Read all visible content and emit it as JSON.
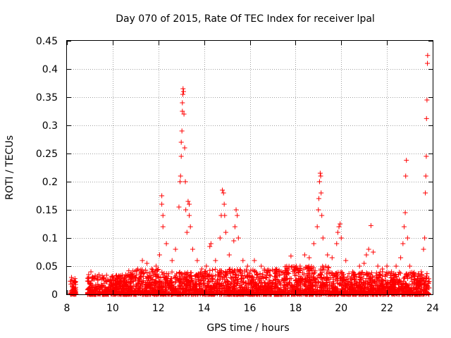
{
  "colors": {
    "series": "#ff0000",
    "axis": "#000000",
    "grid": "#a0a0a0",
    "background": "#ffffff"
  },
  "chart_data": {
    "type": "scatter",
    "title": "Day 070 of 2015, Rate Of TEC Index for receiver lpal",
    "xlabel": "GPS time / hours",
    "ylabel": "ROTI / TECUs",
    "xlim": [
      8,
      24
    ],
    "ylim": [
      0,
      0.45
    ],
    "xticks": [
      8,
      10,
      12,
      14,
      16,
      18,
      20,
      22,
      24
    ],
    "xtick_labels": [
      "8",
      "10",
      "12",
      "14",
      "16",
      "18",
      "20",
      "22",
      "24"
    ],
    "yticks": [
      0,
      0.05,
      0.1,
      0.15,
      0.2,
      0.25,
      0.3,
      0.35,
      0.4,
      0.45
    ],
    "ytick_labels": [
      "0",
      "0.05",
      "0.1",
      "0.15",
      "0.2",
      "0.25",
      "0.3",
      "0.35",
      "0.4",
      "0.45"
    ],
    "grid": true,
    "marker": "+",
    "series": [
      {
        "name": "ROTI",
        "points": [
          [
            8.2,
            0.03
          ],
          [
            8.25,
            0.025
          ],
          [
            8.3,
            0.02
          ],
          [
            8.3,
            0.01
          ],
          [
            8.35,
            0.028
          ],
          [
            8.95,
            0.035
          ],
          [
            9.05,
            0.04
          ],
          [
            9.2,
            0.028
          ],
          [
            9.4,
            0.035
          ],
          [
            9.6,
            0.03
          ],
          [
            9.9,
            0.024
          ],
          [
            10.2,
            0.022
          ],
          [
            10.5,
            0.028
          ],
          [
            10.8,
            0.035
          ],
          [
            11.1,
            0.045
          ],
          [
            11.3,
            0.06
          ],
          [
            11.5,
            0.055
          ],
          [
            11.7,
            0.045
          ],
          [
            11.9,
            0.05
          ],
          [
            12.05,
            0.07
          ],
          [
            12.15,
            0.16
          ],
          [
            12.15,
            0.175
          ],
          [
            12.2,
            0.14
          ],
          [
            12.2,
            0.12
          ],
          [
            12.35,
            0.09
          ],
          [
            12.6,
            0.06
          ],
          [
            12.75,
            0.08
          ],
          [
            12.9,
            0.155
          ],
          [
            12.95,
            0.2
          ],
          [
            12.97,
            0.21
          ],
          [
            13.0,
            0.245
          ],
          [
            13.0,
            0.27
          ],
          [
            13.03,
            0.29
          ],
          [
            13.05,
            0.325
          ],
          [
            13.05,
            0.34
          ],
          [
            13.07,
            0.355
          ],
          [
            13.08,
            0.365
          ],
          [
            13.1,
            0.36
          ],
          [
            13.12,
            0.32
          ],
          [
            13.15,
            0.26
          ],
          [
            13.18,
            0.2
          ],
          [
            13.2,
            0.15
          ],
          [
            13.25,
            0.11
          ],
          [
            13.3,
            0.165
          ],
          [
            13.35,
            0.16
          ],
          [
            13.35,
            0.14
          ],
          [
            13.4,
            0.12
          ],
          [
            13.5,
            0.08
          ],
          [
            13.7,
            0.06
          ],
          [
            13.9,
            0.045
          ],
          [
            14.1,
            0.05
          ],
          [
            14.25,
            0.085
          ],
          [
            14.3,
            0.09
          ],
          [
            14.5,
            0.06
          ],
          [
            14.7,
            0.1
          ],
          [
            14.75,
            0.14
          ],
          [
            14.8,
            0.185
          ],
          [
            14.85,
            0.18
          ],
          [
            14.88,
            0.16
          ],
          [
            14.9,
            0.14
          ],
          [
            14.95,
            0.11
          ],
          [
            15.1,
            0.07
          ],
          [
            15.3,
            0.095
          ],
          [
            15.35,
            0.12
          ],
          [
            15.4,
            0.15
          ],
          [
            15.45,
            0.14
          ],
          [
            15.5,
            0.1
          ],
          [
            15.7,
            0.06
          ],
          [
            15.9,
            0.05
          ],
          [
            16.2,
            0.06
          ],
          [
            16.5,
            0.05
          ],
          [
            16.8,
            0.04
          ],
          [
            17.2,
            0.04
          ],
          [
            17.6,
            0.035
          ],
          [
            17.8,
            0.068
          ],
          [
            18.0,
            0.045
          ],
          [
            18.2,
            0.05
          ],
          [
            18.4,
            0.07
          ],
          [
            18.6,
            0.065
          ],
          [
            18.8,
            0.09
          ],
          [
            18.95,
            0.12
          ],
          [
            19.0,
            0.15
          ],
          [
            19.02,
            0.17
          ],
          [
            19.05,
            0.2
          ],
          [
            19.08,
            0.215
          ],
          [
            19.1,
            0.21
          ],
          [
            19.12,
            0.18
          ],
          [
            19.15,
            0.14
          ],
          [
            19.2,
            0.1
          ],
          [
            19.4,
            0.07
          ],
          [
            19.6,
            0.065
          ],
          [
            19.8,
            0.09
          ],
          [
            19.85,
            0.11
          ],
          [
            19.9,
            0.12
          ],
          [
            19.95,
            0.125
          ],
          [
            20.0,
            0.1
          ],
          [
            20.2,
            0.06
          ],
          [
            20.5,
            0.04
          ],
          [
            20.8,
            0.05
          ],
          [
            21.0,
            0.055
          ],
          [
            21.1,
            0.07
          ],
          [
            21.2,
            0.08
          ],
          [
            21.3,
            0.122
          ],
          [
            21.4,
            0.075
          ],
          [
            21.6,
            0.05
          ],
          [
            21.8,
            0.045
          ],
          [
            22.0,
            0.05
          ],
          [
            22.2,
            0.04
          ],
          [
            22.4,
            0.05
          ],
          [
            22.6,
            0.065
          ],
          [
            22.7,
            0.09
          ],
          [
            22.75,
            0.12
          ],
          [
            22.8,
            0.145
          ],
          [
            22.82,
            0.21
          ],
          [
            22.85,
            0.238
          ],
          [
            22.9,
            0.1
          ],
          [
            23.0,
            0.05
          ],
          [
            23.2,
            0.035
          ],
          [
            23.5,
            0.04
          ],
          [
            23.6,
            0.08
          ],
          [
            23.65,
            0.1
          ],
          [
            23.68,
            0.18
          ],
          [
            23.7,
            0.21
          ],
          [
            23.72,
            0.245
          ],
          [
            23.73,
            0.312
          ],
          [
            23.75,
            0.345
          ],
          [
            23.77,
            0.41
          ],
          [
            23.78,
            0.424
          ]
        ]
      }
    ]
  }
}
